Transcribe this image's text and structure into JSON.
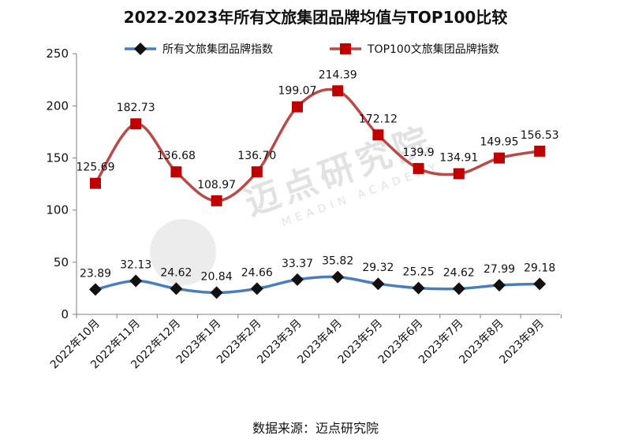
{
  "chart_data": {
    "type": "line",
    "title": "2022-2023年所有文旅集团品牌均值与TOP100比较",
    "source": "数据来源：迈点研究院",
    "watermark": {
      "text": "迈点研究院",
      "subtext": "MEADIN ACADEMY"
    },
    "categories": [
      "2022年10月",
      "2022年11月",
      "2022年12月",
      "2023年1月",
      "2023年2月",
      "2023年3月",
      "2023年4月",
      "2023年5月",
      "2023年6月",
      "2023年7月",
      "2023年8月",
      "2023年9月"
    ],
    "ylim": [
      0,
      250
    ],
    "yticks": [
      0,
      50,
      100,
      150,
      200,
      250
    ],
    "legend_position": "top",
    "series": [
      {
        "name": "所有文旅集团品牌指数",
        "values": [
          23.89,
          32.13,
          24.62,
          20.84,
          24.66,
          33.37,
          35.82,
          29.32,
          25.25,
          24.62,
          27.99,
          29.18
        ],
        "labels": [
          "23.89",
          "32.13",
          "24.62",
          "20.84",
          "24.66",
          "33.37",
          "35.82",
          "29.32",
          "25.25",
          "24.62",
          "27.99",
          "29.18"
        ],
        "line_color": "#4a7ebb",
        "marker_color": "#111111",
        "marker": "diamond"
      },
      {
        "name": "TOP100文旅集团品牌指数",
        "values": [
          125.69,
          182.73,
          136.68,
          108.97,
          136.7,
          199.07,
          214.39,
          172.12,
          139.9,
          134.91,
          149.95,
          156.53
        ],
        "labels": [
          "125.69",
          "182.73",
          "136.68",
          "108.97",
          "136.70",
          "199.07",
          "214.39",
          "172.12",
          "139.9",
          "134.91",
          "149.95",
          "156.53"
        ],
        "line_color": "#b94a48",
        "marker_color": "#c00000",
        "marker": "square"
      }
    ]
  }
}
